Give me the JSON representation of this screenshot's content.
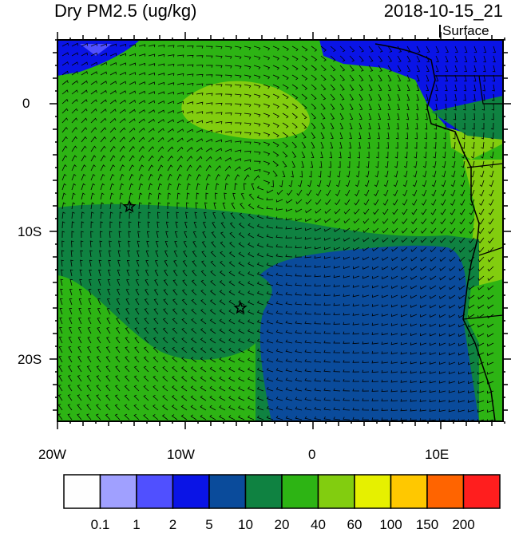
{
  "title": "Dry PM2.5 (ug/kg)",
  "datetime": "2018-10-15_21",
  "level": "Surface",
  "axes": {
    "lat_labels": [
      "0",
      "10S",
      "20S"
    ],
    "lon_labels": [
      "20W",
      "10W",
      "0",
      "10E"
    ]
  },
  "colorbar": {
    "labels": [
      "0.1",
      "1",
      "2",
      "5",
      "10",
      "20",
      "40",
      "60",
      "100",
      "150",
      "200"
    ],
    "colors": [
      "#fefefe",
      "#a0a0ff",
      "#5050ff",
      "#0a14e6",
      "#0a4b9b",
      "#0f8241",
      "#2db414",
      "#82cd0f",
      "#e6f000",
      "#ffc800",
      "#ff6400",
      "#ff1e1e"
    ]
  },
  "field_colors": {
    "ocean_dark_blue": "#0a4b9b",
    "dark_green": "#0f8241",
    "green": "#2db414",
    "light_green": "#82cd0f",
    "blue": "#0a14e6",
    "lightblue": "#5050ff"
  },
  "markers": [
    "star-marker-1",
    "star-marker-2"
  ]
}
